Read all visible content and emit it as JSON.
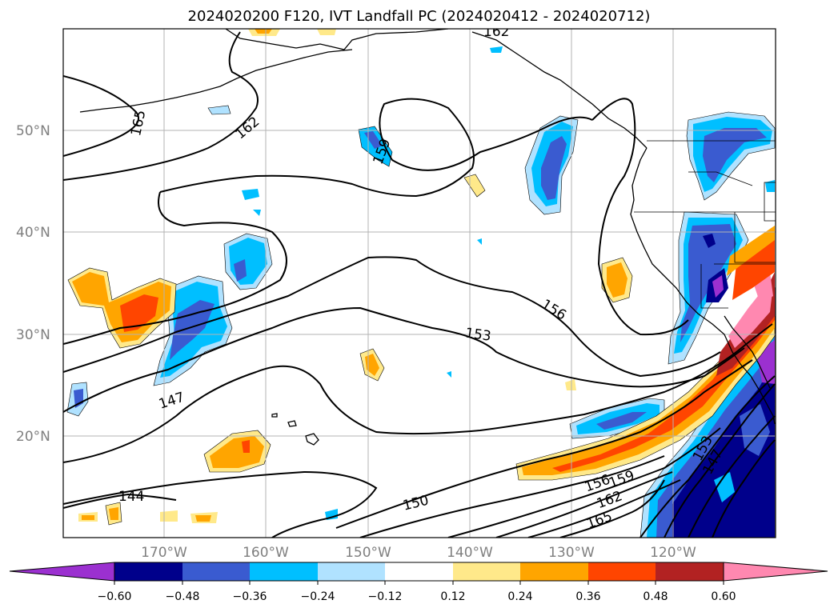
{
  "title": "2024020200 F120, IVT Landfall PC (2024020412 - 2024020712)",
  "map": {
    "lat_labels": [
      "50°N",
      "40°N",
      "30°N",
      "20°N"
    ],
    "lon_labels": [
      "170°W",
      "160°W",
      "150°W",
      "140°W",
      "130°W",
      "120°W"
    ],
    "contour_labels": [
      "165",
      "162",
      "159",
      "156",
      "153",
      "150",
      "147",
      "144",
      "162",
      "159",
      "156",
      "165",
      "147",
      "153",
      "162"
    ],
    "grid": true
  },
  "colorbar": {
    "ticks": [
      "−0.60",
      "−0.48",
      "−0.36",
      "−0.24",
      "−0.12",
      "0.12",
      "0.24",
      "0.36",
      "0.48",
      "0.60"
    ],
    "colors": [
      "#9b30d0",
      "#00008b",
      "#3a5bd0",
      "#00bfff",
      "#b0e2ff",
      "#ffffff",
      "#ffe98a",
      "#ffa500",
      "#ff4500",
      "#b22222",
      "#ff88b0"
    ]
  },
  "shading_colors": {
    "light_blue": "#b0e2ff",
    "blue": "#00bfff",
    "mid_blue": "#3a5bd0",
    "navy": "#00008b",
    "purple": "#9b30d0",
    "yellow": "#ffe98a",
    "orange": "#ffa500",
    "red_orange": "#ff4500",
    "dark_red": "#b22222",
    "pink": "#ff88b0"
  }
}
